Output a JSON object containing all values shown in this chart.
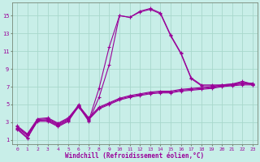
{
  "xlabel": "Windchill (Refroidissement éolien,°C)",
  "xlim": [
    -0.5,
    23.5
  ],
  "ylim": [
    0.5,
    16.5
  ],
  "yticks": [
    1,
    3,
    5,
    7,
    9,
    11,
    13,
    15
  ],
  "xticks": [
    0,
    1,
    2,
    3,
    4,
    5,
    6,
    7,
    8,
    9,
    10,
    11,
    12,
    13,
    14,
    15,
    16,
    17,
    18,
    19,
    20,
    21,
    22,
    23
  ],
  "bg_color": "#c8eee8",
  "grid_color": "#a8d8cc",
  "line_color": "#990099",
  "lines": [
    [
      2.2,
      1.2,
      3.2,
      3.2,
      2.6,
      3.2,
      5.0,
      3.2,
      6.8,
      11.5,
      15.0,
      14.8,
      15.5,
      15.8,
      15.3,
      12.8,
      10.8,
      8.0,
      7.2,
      7.2,
      7.2,
      7.3,
      7.6,
      7.3
    ],
    [
      2.3,
      1.3,
      3.1,
      3.1,
      2.5,
      3.1,
      4.8,
      3.1,
      5.8,
      9.5,
      15.0,
      14.8,
      15.4,
      15.7,
      15.2,
      12.7,
      10.7,
      7.9,
      7.1,
      7.1,
      7.1,
      7.2,
      7.5,
      7.2
    ],
    [
      2.4,
      1.5,
      3.2,
      3.3,
      2.7,
      3.3,
      4.7,
      3.3,
      4.5,
      5.0,
      5.5,
      5.8,
      6.0,
      6.2,
      6.3,
      6.3,
      6.5,
      6.6,
      6.7,
      6.8,
      7.0,
      7.1,
      7.2,
      7.2
    ],
    [
      2.5,
      1.6,
      3.3,
      3.4,
      2.8,
      3.4,
      4.8,
      3.4,
      4.6,
      5.1,
      5.6,
      5.9,
      6.1,
      6.3,
      6.4,
      6.4,
      6.6,
      6.7,
      6.8,
      6.9,
      7.1,
      7.2,
      7.3,
      7.3
    ],
    [
      2.6,
      1.7,
      3.4,
      3.5,
      2.9,
      3.5,
      4.9,
      3.5,
      4.7,
      5.2,
      5.7,
      6.0,
      6.2,
      6.4,
      6.5,
      6.5,
      6.7,
      6.8,
      6.9,
      7.0,
      7.2,
      7.3,
      7.4,
      7.4
    ]
  ]
}
